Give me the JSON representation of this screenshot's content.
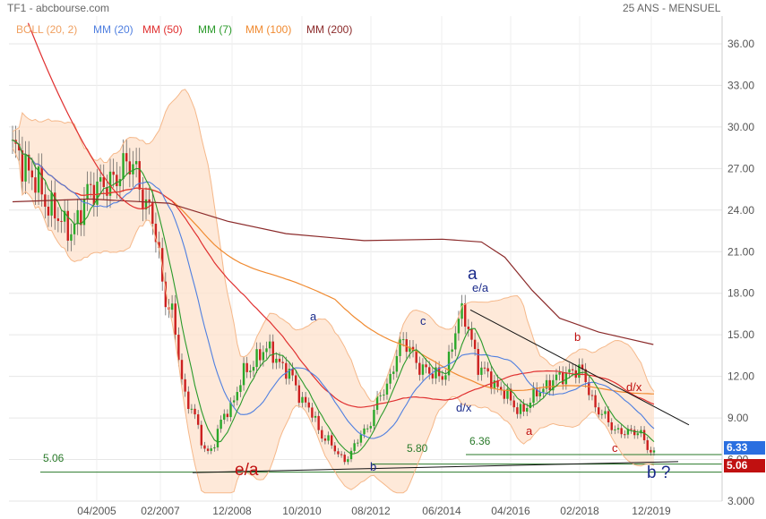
{
  "header": {
    "title": "TF1 - abcbourse.com",
    "period": "25 ANS - MENSUEL"
  },
  "legend": [
    {
      "label": "BOLL (20, 2)",
      "color": "#f0a060"
    },
    {
      "label": "MM (20)",
      "color": "#4f7fe0"
    },
    {
      "label": "MM (50)",
      "color": "#e03030"
    },
    {
      "label": "MM (7)",
      "color": "#2a9a2a"
    },
    {
      "label": "MM (100)",
      "color": "#f08a30"
    },
    {
      "label": "MM (200)",
      "color": "#8b2a2a"
    }
  ],
  "chart_data": {
    "type": "candlestick",
    "y_ticks": [
      "3.000",
      "6.00",
      "9.00",
      "12.00",
      "15.00",
      "18.00",
      "21.00",
      "24.00",
      "27.00",
      "30.00",
      "33.00",
      "36.00"
    ],
    "ylim": [
      3,
      38
    ],
    "x_ticks": [
      "04/2005",
      "02/2007",
      "12/2008",
      "10/2010",
      "08/2012",
      "06/2014",
      "04/2016",
      "02/2018",
      "12/2019"
    ],
    "price_badges": [
      {
        "value": "6.33",
        "color": "#2a6fe0"
      },
      {
        "value": "5.06",
        "color": "#c01010"
      }
    ],
    "annotations": [
      {
        "text": "e/a",
        "color": "#c01010",
        "size": 19
      },
      {
        "text": "a",
        "color": "#1a2a8a",
        "size": 13
      },
      {
        "text": "b",
        "color": "#1a2a8a",
        "size": 13
      },
      {
        "text": "c",
        "color": "#1a2a8a",
        "size": 13
      },
      {
        "text": "d/x",
        "color": "#1a2a8a",
        "size": 13
      },
      {
        "text": "a",
        "color": "#1a2a8a",
        "size": 19
      },
      {
        "text": "e/a",
        "color": "#1a2a8a",
        "size": 13
      },
      {
        "text": "a",
        "color": "#c01010",
        "size": 13
      },
      {
        "text": "b",
        "color": "#c01010",
        "size": 13
      },
      {
        "text": "c",
        "color": "#c01010",
        "size": 13
      },
      {
        "text": "d/x",
        "color": "#c01010",
        "size": 13
      },
      {
        "text": "b ?",
        "color": "#1a2a8a",
        "size": 19
      },
      {
        "text": "5.06",
        "color": "#2a7a2a",
        "size": 12
      },
      {
        "text": "5.80",
        "color": "#2a7a2a",
        "size": 12
      },
      {
        "text": "6.36",
        "color": "#2a7a2a",
        "size": 12
      }
    ],
    "horizontal_levels": [
      5.06,
      5.8,
      6.36
    ],
    "price_anchors": [
      [
        2004.0,
        28.5
      ],
      [
        2004.5,
        26.5
      ],
      [
        2005.0,
        24.0
      ],
      [
        2005.5,
        22.5
      ],
      [
        2006.0,
        25.5
      ],
      [
        2006.5,
        26.0
      ],
      [
        2007.0,
        27.5
      ],
      [
        2007.5,
        24.0
      ],
      [
        2008.0,
        17.0
      ],
      [
        2008.5,
        10.0
      ],
      [
        2009.0,
        6.5
      ],
      [
        2009.5,
        9.5
      ],
      [
        2010.0,
        12.5
      ],
      [
        2010.5,
        14.0
      ],
      [
        2011.0,
        12.5
      ],
      [
        2011.5,
        10.0
      ],
      [
        2012.0,
        7.5
      ],
      [
        2012.5,
        6.0
      ],
      [
        2013.0,
        8.0
      ],
      [
        2013.5,
        11.0
      ],
      [
        2014.0,
        14.5
      ],
      [
        2014.5,
        12.5
      ],
      [
        2015.0,
        12.0
      ],
      [
        2015.5,
        16.5
      ],
      [
        2016.0,
        12.5
      ],
      [
        2016.5,
        11.0
      ],
      [
        2017.0,
        9.5
      ],
      [
        2017.5,
        11.0
      ],
      [
        2018.0,
        12.0
      ],
      [
        2018.5,
        12.5
      ],
      [
        2019.0,
        9.5
      ],
      [
        2019.5,
        8.0
      ],
      [
        2020.0,
        8.0
      ],
      [
        2020.4,
        6.4
      ]
    ],
    "mm200": [
      [
        2004.0,
        24.6
      ],
      [
        2006.0,
        24.8
      ],
      [
        2008.0,
        24.5
      ],
      [
        2009.5,
        23.2
      ],
      [
        2011.0,
        22.3
      ],
      [
        2013.0,
        21.8
      ],
      [
        2015.0,
        21.9
      ],
      [
        2016.0,
        21.7
      ],
      [
        2016.6,
        20.6
      ],
      [
        2017.3,
        18.2
      ],
      [
        2018.0,
        16.2
      ],
      [
        2019.0,
        15.2
      ],
      [
        2020.4,
        14.3
      ]
    ]
  }
}
